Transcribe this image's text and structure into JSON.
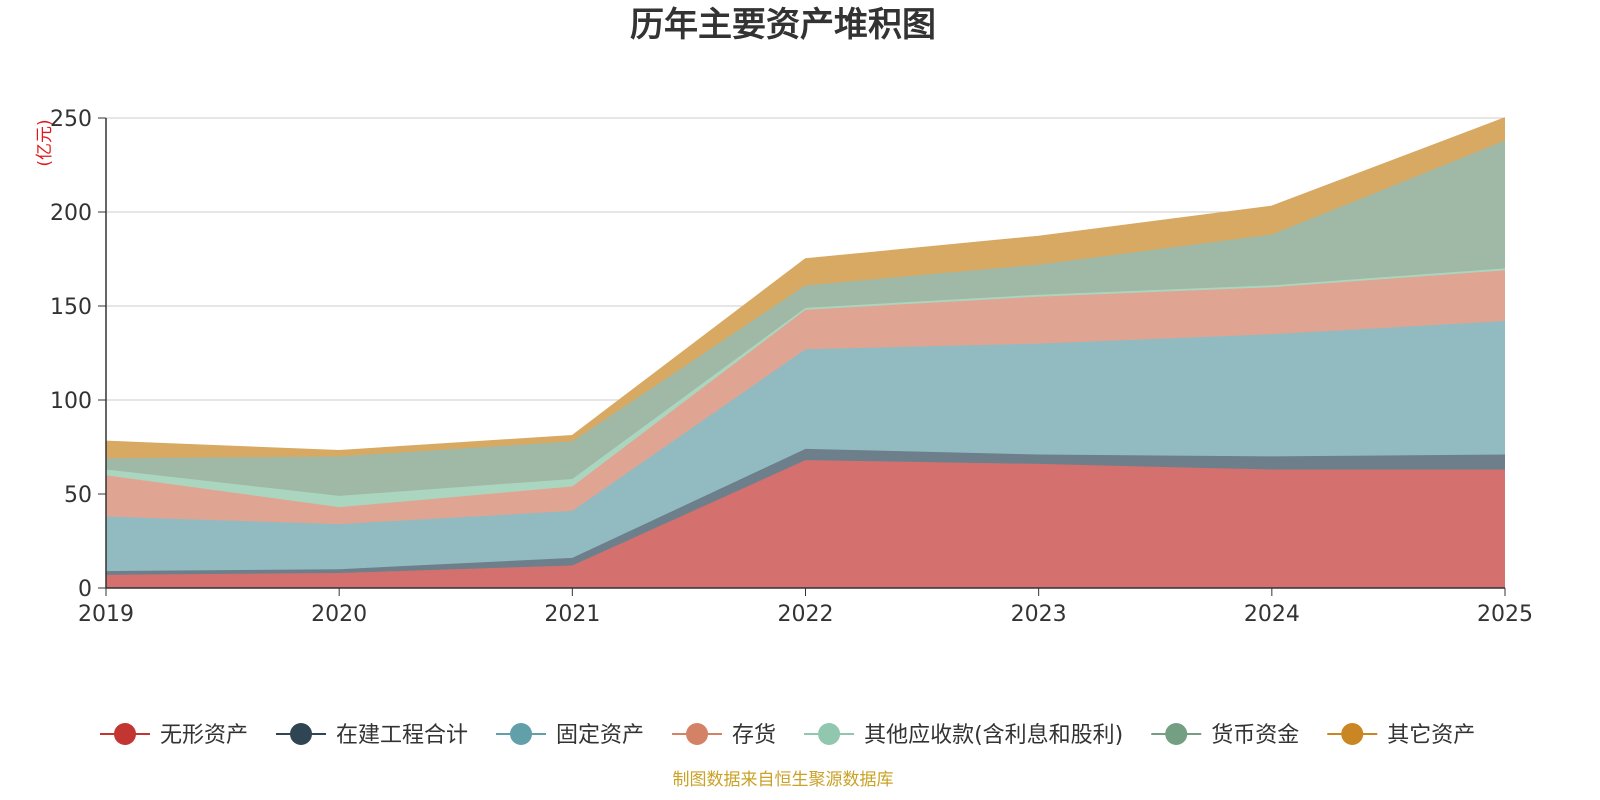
{
  "chart_data": {
    "type": "area",
    "stacked": true,
    "title": "历年主要资产堆积图",
    "ylabel": "(亿元)",
    "xlabel": "",
    "ylim": [
      0,
      250
    ],
    "yticks": [
      0,
      50,
      100,
      150,
      200,
      250
    ],
    "grid": true,
    "legend_position": "bottom",
    "categories": [
      "2019",
      "2020",
      "2021",
      "2022",
      "2023",
      "2024",
      "2025"
    ],
    "series": [
      {
        "name": "无形资产",
        "color": "#c23531",
        "fill": "#d4716f",
        "values": [
          7,
          8,
          12,
          68,
          66,
          63,
          63
        ]
      },
      {
        "name": "在建工程合计",
        "color": "#2f4554",
        "fill": "#6d7f8a",
        "values": [
          2,
          2,
          4,
          6,
          5,
          7,
          8
        ]
      },
      {
        "name": "固定资产",
        "color": "#61a0a8",
        "fill": "#92bbc1",
        "values": [
          29,
          24,
          25,
          53,
          59,
          65,
          71
        ]
      },
      {
        "name": "存货",
        "color": "#d48265",
        "fill": "#e0a592",
        "values": [
          22,
          9,
          13,
          21,
          25,
          25,
          27
        ]
      },
      {
        "name": "其他应收款(含利息和股利)",
        "color": "#91c7ae",
        "fill": "#aad6c0",
        "values": [
          3,
          6,
          4,
          1,
          1,
          1,
          1
        ]
      },
      {
        "name": "货币资金",
        "color": "#749f83",
        "fill": "#9fb9a6",
        "values": [
          6,
          21,
          20,
          12,
          16,
          27,
          68
        ]
      },
      {
        "name": "其它资产",
        "color": "#ca8622",
        "fill": "#d8a962",
        "values": [
          9,
          3,
          3,
          14,
          15,
          15,
          12
        ]
      }
    ],
    "source": "制图数据来自恒生聚源数据库"
  }
}
